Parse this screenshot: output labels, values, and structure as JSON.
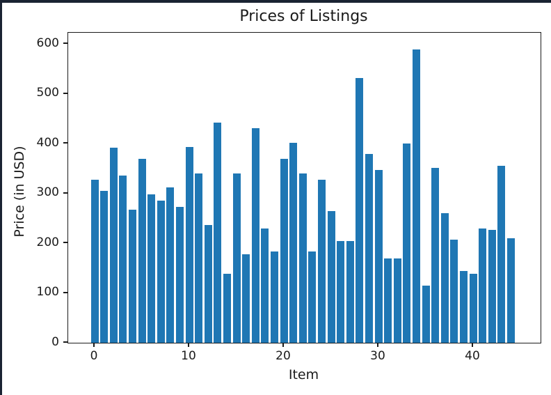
{
  "window": {
    "border_color": "#1a2332",
    "background": "#ffffff"
  },
  "chart_data": {
    "type": "bar",
    "title": "Prices of Listings",
    "xlabel": "Item",
    "ylabel": "Price (in USD)",
    "x": [
      0,
      1,
      2,
      3,
      4,
      5,
      6,
      7,
      8,
      9,
      10,
      11,
      12,
      13,
      14,
      15,
      16,
      17,
      18,
      19,
      20,
      21,
      22,
      23,
      24,
      25,
      26,
      27,
      28,
      29,
      30,
      31,
      32,
      33,
      34,
      35,
      36,
      37,
      38,
      39,
      40,
      41,
      42,
      43,
      44
    ],
    "values": [
      327,
      305,
      392,
      336,
      268,
      369,
      298,
      285,
      312,
      273,
      394,
      340,
      236,
      442,
      138,
      340,
      178,
      431,
      230,
      184,
      369,
      402,
      340,
      183,
      327,
      264,
      204,
      205,
      532,
      380,
      347,
      170,
      170,
      400,
      589,
      115,
      352,
      261,
      207,
      144,
      138,
      230,
      227,
      355,
      210
    ],
    "bar_color": "#1f77b4",
    "axis_color": "#1a1a1a",
    "xticks": [
      0,
      10,
      20,
      30,
      40
    ],
    "yticks": [
      0,
      100,
      200,
      300,
      400,
      500,
      600
    ],
    "xlim": [
      -2.8,
      47.1
    ],
    "ylim": [
      0,
      622
    ],
    "grid": false,
    "legend": false
  }
}
